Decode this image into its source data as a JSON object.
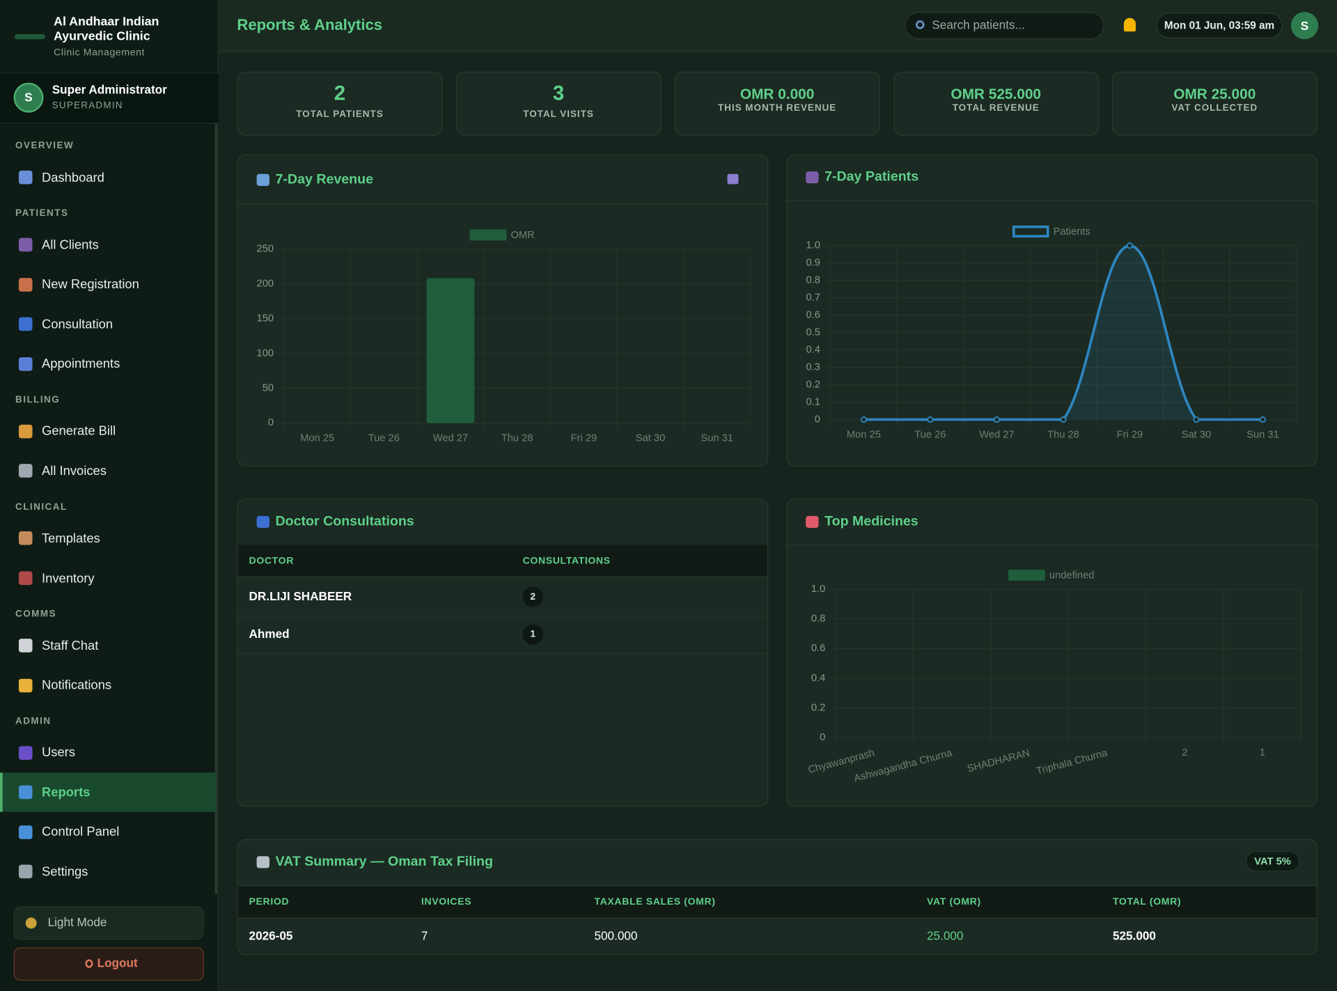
{
  "sidebar": {
    "brand": "Al Andhaar Indian Ayurvedic Clinic",
    "brand_sub": "Clinic Management",
    "user": "Super Administrator",
    "role": "SUPERADMIN",
    "avatar": "S",
    "sections": [
      {
        "title": "OVERVIEW",
        "items": [
          "Dashboard"
        ]
      },
      {
        "title": "PATIENTS",
        "items": [
          "All Clients",
          "New Registration",
          "Consultation",
          "Appointments"
        ]
      },
      {
        "title": "BILLING",
        "items": [
          "Generate Bill",
          "All Invoices"
        ]
      },
      {
        "title": "CLINICAL",
        "items": [
          "Templates",
          "Inventory"
        ]
      },
      {
        "title": "COMMS",
        "items": [
          "Staff Chat",
          "Notifications"
        ]
      },
      {
        "title": "ADMIN",
        "items": [
          "Users",
          "Reports",
          "Control Panel",
          "Settings"
        ]
      }
    ],
    "active": "Reports",
    "light_mode": "Light Mode",
    "logout": "Logout"
  },
  "header": {
    "title": "Reports & Analytics",
    "search_placeholder": "Search patients...",
    "datetime": "Mon 01 Jun, 03:59 am",
    "avatar": "S"
  },
  "stats": [
    {
      "value": "2",
      "label": "TOTAL PATIENTS"
    },
    {
      "value": "3",
      "label": "TOTAL VISITS"
    },
    {
      "value": "OMR 0.000",
      "label": "THIS MONTH REVENUE"
    },
    {
      "value": "OMR 525.000",
      "label": "TOTAL REVENUE"
    },
    {
      "value": "OMR 25.000",
      "label": "VAT COLLECTED"
    }
  ],
  "chart_data": [
    {
      "type": "bar",
      "title": "7-Day Revenue",
      "categories": [
        "Mon 25",
        "Tue 26",
        "Wed 27",
        "Thu 28",
        "Fri 29",
        "Sat 30",
        "Sun 31"
      ],
      "series": [
        {
          "name": "OMR",
          "color": "#1e5e3c",
          "values": [
            0,
            0,
            208,
            0,
            0,
            0,
            0
          ]
        }
      ],
      "ylim": [
        0,
        250
      ],
      "yticks": [
        0,
        50,
        100,
        150,
        200,
        250
      ],
      "grid": true,
      "legend": "top"
    },
    {
      "type": "line",
      "title": "7-Day Patients",
      "categories": [
        "Mon 25",
        "Tue 26",
        "Wed 27",
        "Thu 28",
        "Fri 29",
        "Sat 30",
        "Sun 31"
      ],
      "series": [
        {
          "name": "Patients",
          "color": "#2e86c1",
          "values": [
            0,
            0,
            0,
            0,
            1,
            0,
            0
          ]
        }
      ],
      "ylim": [
        0,
        1
      ],
      "yticks": [
        0,
        0.1,
        0.2,
        0.3,
        0.4,
        0.5,
        0.6,
        0.7,
        0.8,
        0.9,
        {
          "value": 1,
          "label": "1.0"
        }
      ],
      "grid": true,
      "legend": "top"
    },
    {
      "type": "bar",
      "title": "Top Medicines",
      "categories": [
        "Chyawanprash",
        "Ashwagandha Churna",
        "SHADHARAN",
        "Triphala Churna",
        "2",
        "1"
      ],
      "series": [
        {
          "name": "undefined",
          "color": "#1e5e3c",
          "values": [
            0,
            0,
            0,
            0,
            0,
            0
          ]
        }
      ],
      "ylim": [
        0,
        1
      ],
      "yticks": [
        0,
        0.2,
        0.4,
        0.6,
        0.8,
        {
          "value": 1,
          "label": "1.0"
        }
      ],
      "grid": true,
      "legend": "top"
    }
  ],
  "doctor_consultations": {
    "title": "Doctor Consultations",
    "columns": [
      "DOCTOR",
      "CONSULTATIONS"
    ],
    "rows": [
      [
        "DR.LIJI SHABEER",
        "2"
      ],
      [
        "Ahmed",
        "1"
      ]
    ]
  },
  "vat_summary": {
    "title": "VAT Summary — Oman Tax Filing",
    "badge": "VAT 5%",
    "columns": [
      "PERIOD",
      "INVOICES",
      "TAXABLE SALES (OMR)",
      "VAT (OMR)",
      "TOTAL (OMR)"
    ],
    "rows": [
      [
        "2026-05",
        "7",
        "500.000",
        "25.000",
        "525.000"
      ]
    ]
  }
}
